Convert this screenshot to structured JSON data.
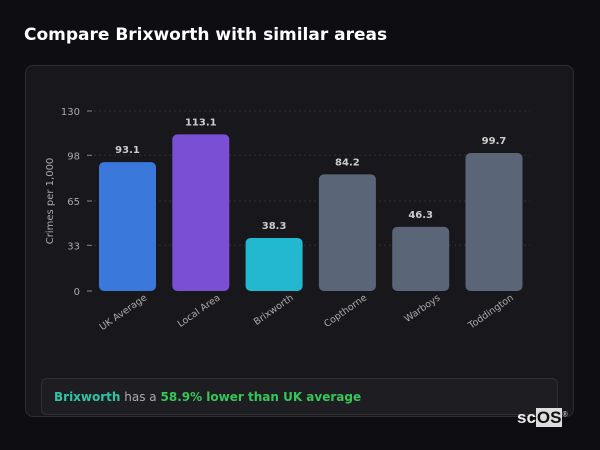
{
  "title": "Compare Brixworth with similar areas",
  "chart_data": {
    "type": "bar",
    "categories": [
      "UK Average",
      "Local Area",
      "Brixworth",
      "Copthorne",
      "Warboys",
      "Toddington"
    ],
    "values": [
      93.1,
      113.1,
      38.3,
      84.2,
      46.3,
      99.7
    ],
    "colors": [
      "#3a78dc",
      "#7b4fd4",
      "#22b8cf",
      "#5a6578",
      "#5a6578",
      "#5a6578"
    ],
    "ylabel": "Crimes per 1,000",
    "xlabel": "",
    "yticks": [
      0,
      33,
      65,
      98,
      130
    ],
    "ylim": [
      0,
      130
    ],
    "grid": true
  },
  "footer": {
    "area": "Brixworth",
    "middle": "has a",
    "comparison": "58.9% lower than UK average"
  },
  "logo": {
    "text_a": "sc",
    "text_b": "OS",
    "mark": "®"
  }
}
